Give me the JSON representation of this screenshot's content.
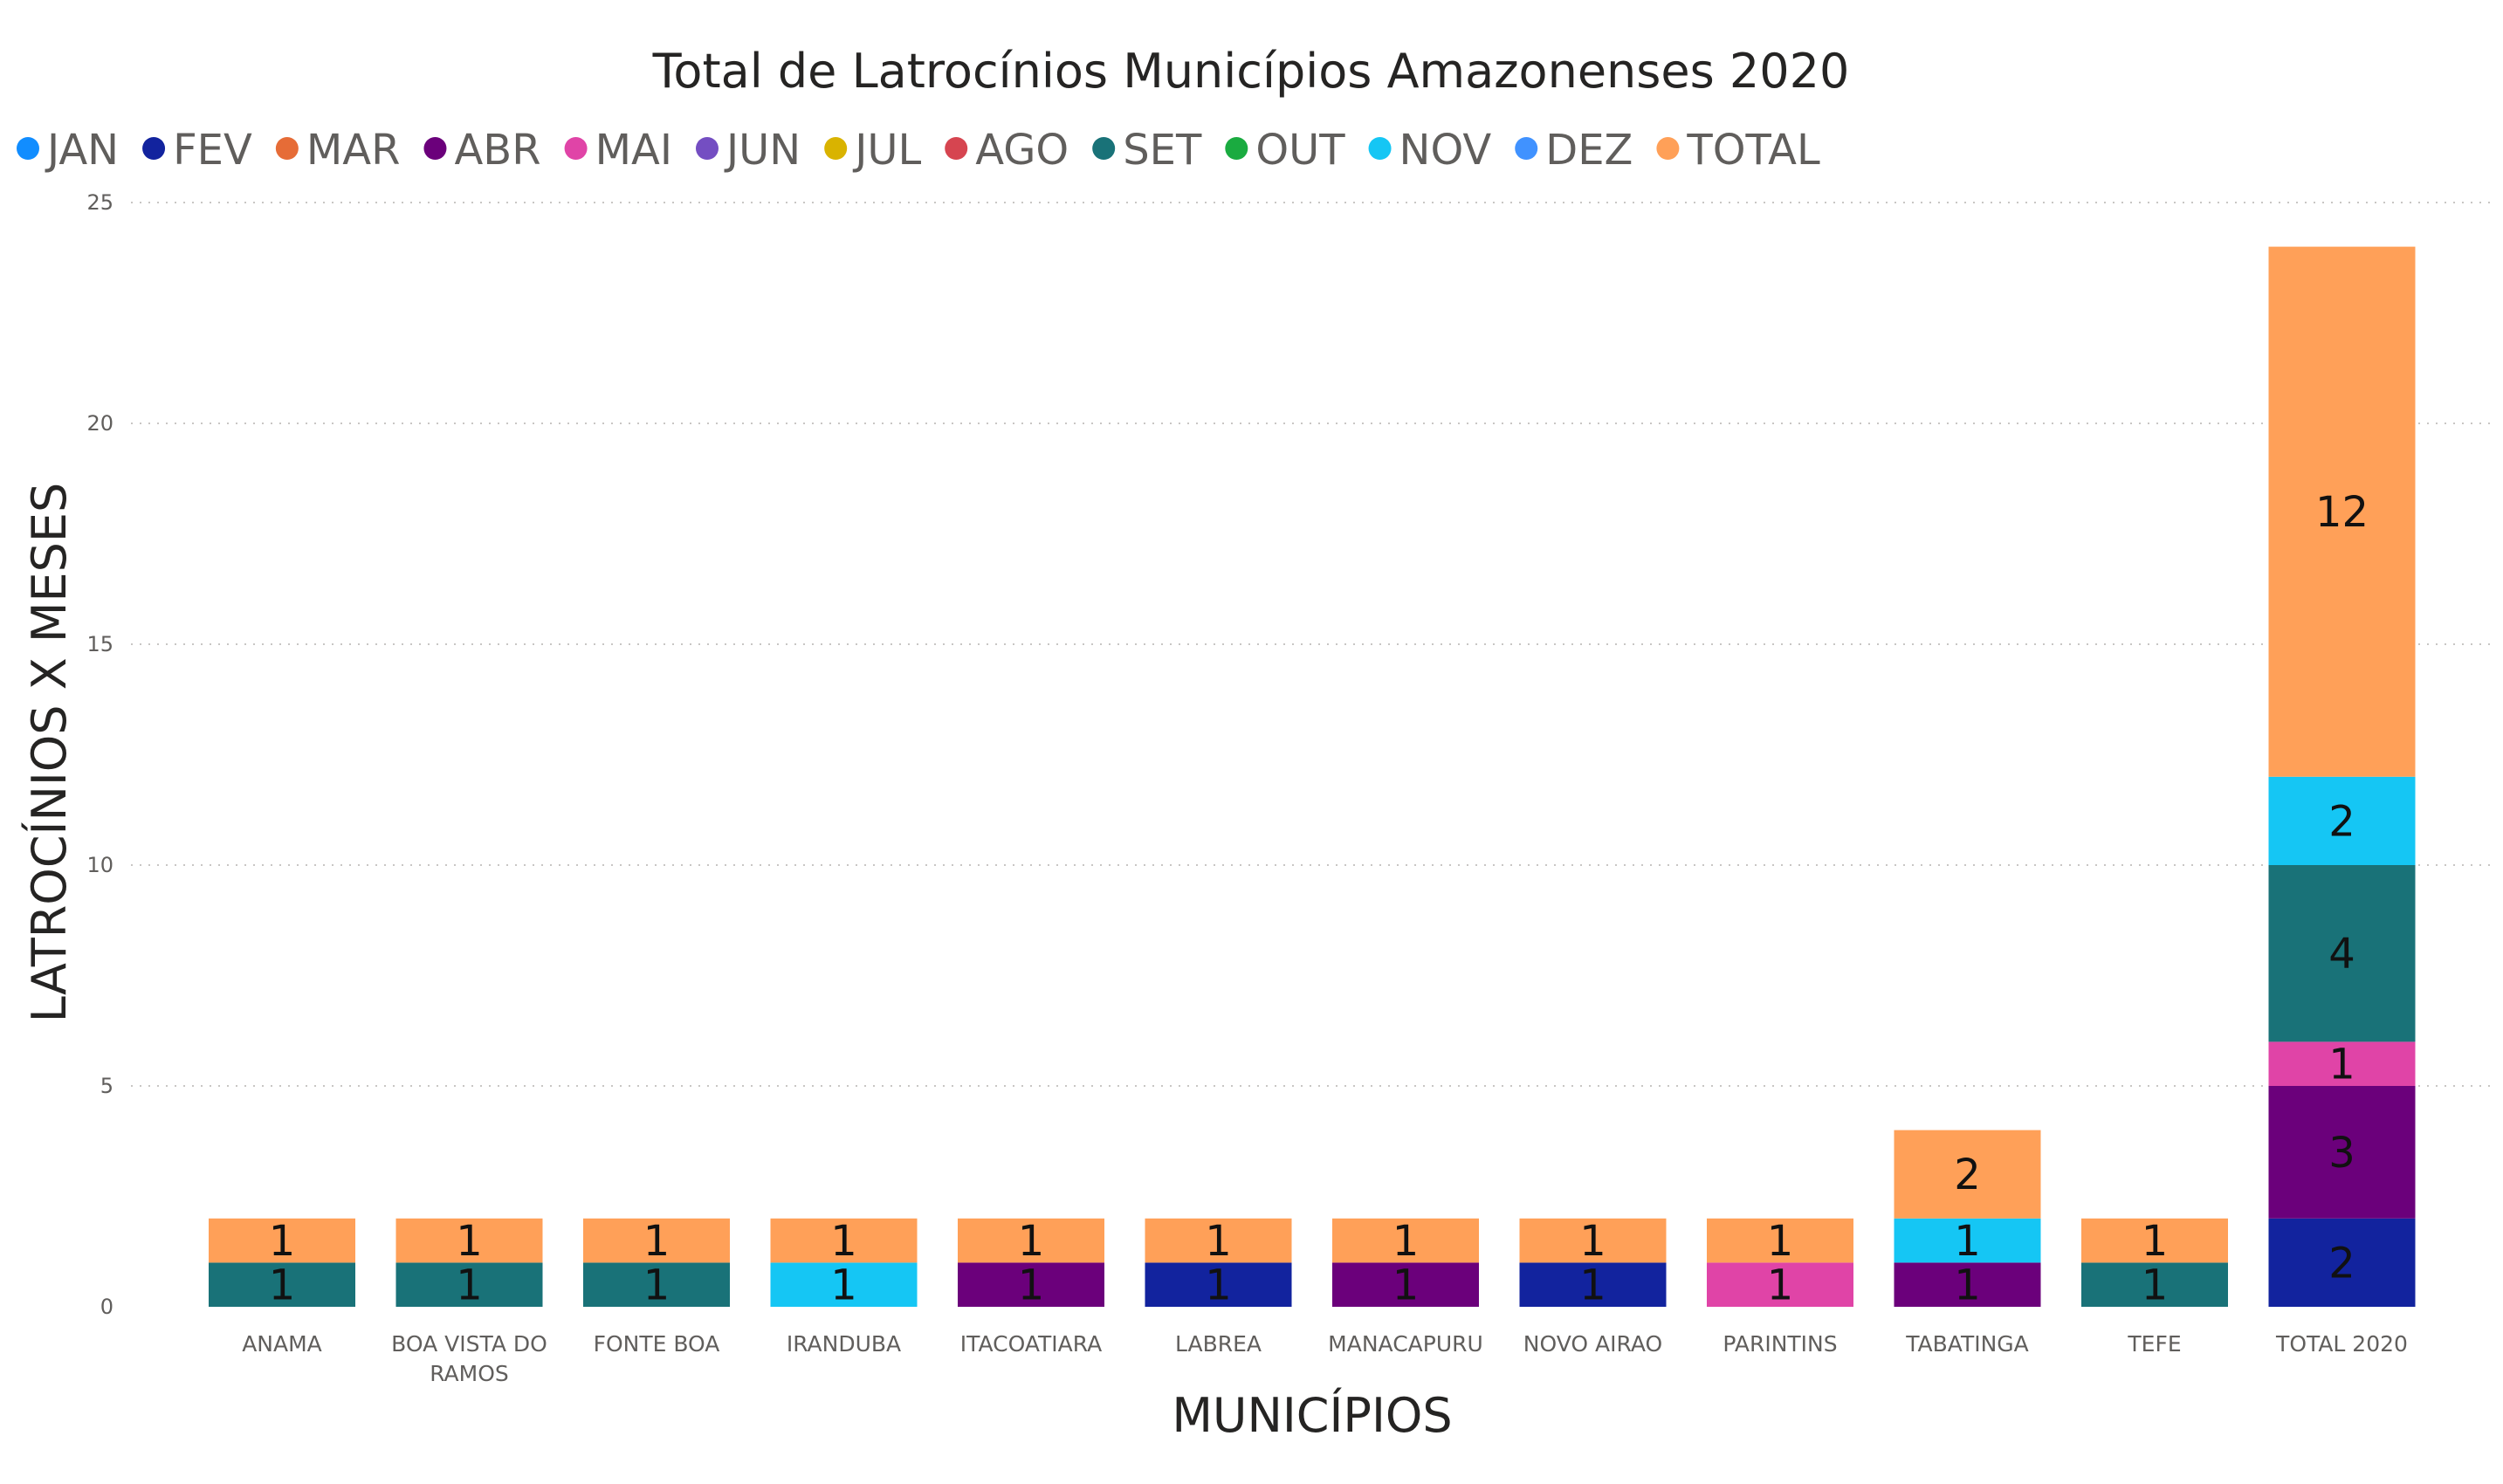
{
  "chart_data": {
    "type": "bar",
    "stacked": true,
    "title": "Total de Latrocínios Municípios Amazonenses 2020",
    "xlabel": "MUNICÍPIOS",
    "ylabel": "LATROCÍNIOS X MESES",
    "ylim": [
      0,
      25
    ],
    "yticks": [
      0,
      5,
      10,
      15,
      20,
      25
    ],
    "grid": true,
    "legend_position": "top-left",
    "categories": [
      [
        "ANAMA"
      ],
      [
        "BOA VISTA DO",
        "RAMOS"
      ],
      [
        "FONTE BOA"
      ],
      [
        "IRANDUBA"
      ],
      [
        "ITACOATIARA"
      ],
      [
        "LABREA"
      ],
      [
        "MANACAPURU"
      ],
      [
        "NOVO AIRAO"
      ],
      [
        "PARINTINS"
      ],
      [
        "TABATINGA"
      ],
      [
        "TEFE"
      ],
      [
        "TOTAL 2020"
      ]
    ],
    "series": [
      {
        "name": "JAN",
        "color": "#118DFF",
        "values": [
          0,
          0,
          0,
          0,
          0,
          0,
          0,
          0,
          0,
          0,
          0,
          0
        ]
      },
      {
        "name": "FEV",
        "color": "#12239E",
        "values": [
          0,
          0,
          0,
          0,
          0,
          1,
          0,
          1,
          0,
          0,
          0,
          2
        ]
      },
      {
        "name": "MAR",
        "color": "#E66C37",
        "values": [
          0,
          0,
          0,
          0,
          0,
          0,
          0,
          0,
          0,
          0,
          0,
          0
        ]
      },
      {
        "name": "ABR",
        "color": "#6B007B",
        "values": [
          0,
          0,
          0,
          0,
          1,
          0,
          1,
          0,
          0,
          1,
          0,
          3
        ]
      },
      {
        "name": "MAI",
        "color": "#E044A7",
        "values": [
          0,
          0,
          0,
          0,
          0,
          0,
          0,
          0,
          1,
          0,
          0,
          1
        ]
      },
      {
        "name": "JUN",
        "color": "#744EC2",
        "values": [
          0,
          0,
          0,
          0,
          0,
          0,
          0,
          0,
          0,
          0,
          0,
          0
        ]
      },
      {
        "name": "JUL",
        "color": "#D9B300",
        "values": [
          0,
          0,
          0,
          0,
          0,
          0,
          0,
          0,
          0,
          0,
          0,
          0
        ]
      },
      {
        "name": "AGO",
        "color": "#D64550",
        "values": [
          0,
          0,
          0,
          0,
          0,
          0,
          0,
          0,
          0,
          0,
          0,
          0
        ]
      },
      {
        "name": "SET",
        "color": "#197278",
        "values": [
          1,
          1,
          1,
          0,
          0,
          0,
          0,
          0,
          0,
          0,
          1,
          4
        ]
      },
      {
        "name": "OUT",
        "color": "#1AAB40",
        "values": [
          0,
          0,
          0,
          0,
          0,
          0,
          0,
          0,
          0,
          0,
          0,
          0
        ]
      },
      {
        "name": "NOV",
        "color": "#15C6F4",
        "values": [
          0,
          0,
          0,
          1,
          0,
          0,
          0,
          0,
          0,
          1,
          0,
          2
        ]
      },
      {
        "name": "DEZ",
        "color": "#4092FF",
        "values": [
          0,
          0,
          0,
          0,
          0,
          0,
          0,
          0,
          0,
          0,
          0,
          0
        ]
      },
      {
        "name": "TOTAL",
        "color": "#FFA058",
        "values": [
          1,
          1,
          1,
          1,
          1,
          1,
          1,
          1,
          1,
          2,
          1,
          12
        ]
      }
    ]
  }
}
